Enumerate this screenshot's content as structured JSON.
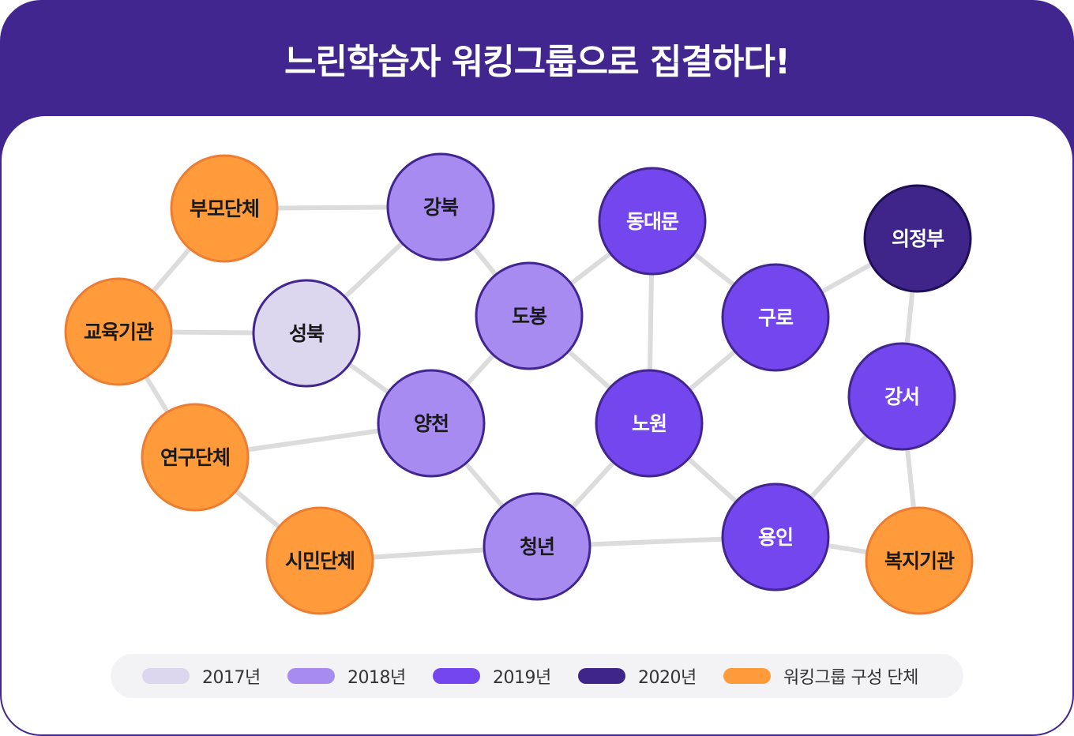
{
  "title": "느린학습자 워킹그룹으로 집결하다!",
  "colors": {
    "y2017": "#dcd6ee",
    "y2018": "#a78bf0",
    "y2019": "#7446ee",
    "y2020": "#3f2589",
    "group": "#ff9b3a",
    "stroke": "#42268f",
    "group_stroke": "#ec7d32",
    "edge": "#dcdcdc"
  },
  "nodes": [
    {
      "id": "bumo",
      "label": "부모단체",
      "type": "group"
    },
    {
      "id": "gyoyuk",
      "label": "교육기관",
      "type": "group"
    },
    {
      "id": "yeongu",
      "label": "연구단체",
      "type": "group"
    },
    {
      "id": "simin",
      "label": "시민단체",
      "type": "group"
    },
    {
      "id": "bokji",
      "label": "복지기관",
      "type": "group"
    },
    {
      "id": "seongbuk",
      "label": "성북",
      "type": "y2017"
    },
    {
      "id": "gangbuk",
      "label": "강북",
      "type": "y2018"
    },
    {
      "id": "dobong",
      "label": "도봉",
      "type": "y2018"
    },
    {
      "id": "yangcheon",
      "label": "양천",
      "type": "y2018"
    },
    {
      "id": "cheongnyeon",
      "label": "청년",
      "type": "y2018"
    },
    {
      "id": "dongdaemun",
      "label": "동대문",
      "type": "y2019"
    },
    {
      "id": "guro",
      "label": "구로",
      "type": "y2019"
    },
    {
      "id": "nowon",
      "label": "노원",
      "type": "y2019"
    },
    {
      "id": "gangseo",
      "label": "강서",
      "type": "y2019"
    },
    {
      "id": "yongin",
      "label": "용인",
      "type": "y2019"
    },
    {
      "id": "uijeongbu",
      "label": "의정부",
      "type": "y2020"
    }
  ],
  "edges": [
    [
      "bumo",
      "gangbuk"
    ],
    [
      "bumo",
      "gyoyuk"
    ],
    [
      "gyoyuk",
      "seongbuk"
    ],
    [
      "gyoyuk",
      "yeongu"
    ],
    [
      "yeongu",
      "yangcheon"
    ],
    [
      "yeongu",
      "simin"
    ],
    [
      "seongbuk",
      "gangbuk"
    ],
    [
      "seongbuk",
      "yangcheon"
    ],
    [
      "gangbuk",
      "dobong"
    ],
    [
      "dobong",
      "yangcheon"
    ],
    [
      "dobong",
      "dongdaemun"
    ],
    [
      "dobong",
      "nowon"
    ],
    [
      "yangcheon",
      "cheongnyeon"
    ],
    [
      "simin",
      "cheongnyeon"
    ],
    [
      "cheongnyeon",
      "nowon"
    ],
    [
      "cheongnyeon",
      "yongin"
    ],
    [
      "dongdaemun",
      "nowon"
    ],
    [
      "dongdaemun",
      "guro"
    ],
    [
      "nowon",
      "guro"
    ],
    [
      "nowon",
      "yongin"
    ],
    [
      "guro",
      "uijeongbu"
    ],
    [
      "uijeongbu",
      "gangseo"
    ],
    [
      "gangseo",
      "yongin"
    ],
    [
      "gangseo",
      "bokji"
    ],
    [
      "yongin",
      "bokji"
    ]
  ],
  "legend": [
    {
      "type": "y2017",
      "label": "2017년"
    },
    {
      "type": "y2018",
      "label": "2018년"
    },
    {
      "type": "y2019",
      "label": "2019년"
    },
    {
      "type": "y2020",
      "label": "2020년"
    },
    {
      "type": "group",
      "label": "워킹그룹 구성 단체"
    }
  ]
}
